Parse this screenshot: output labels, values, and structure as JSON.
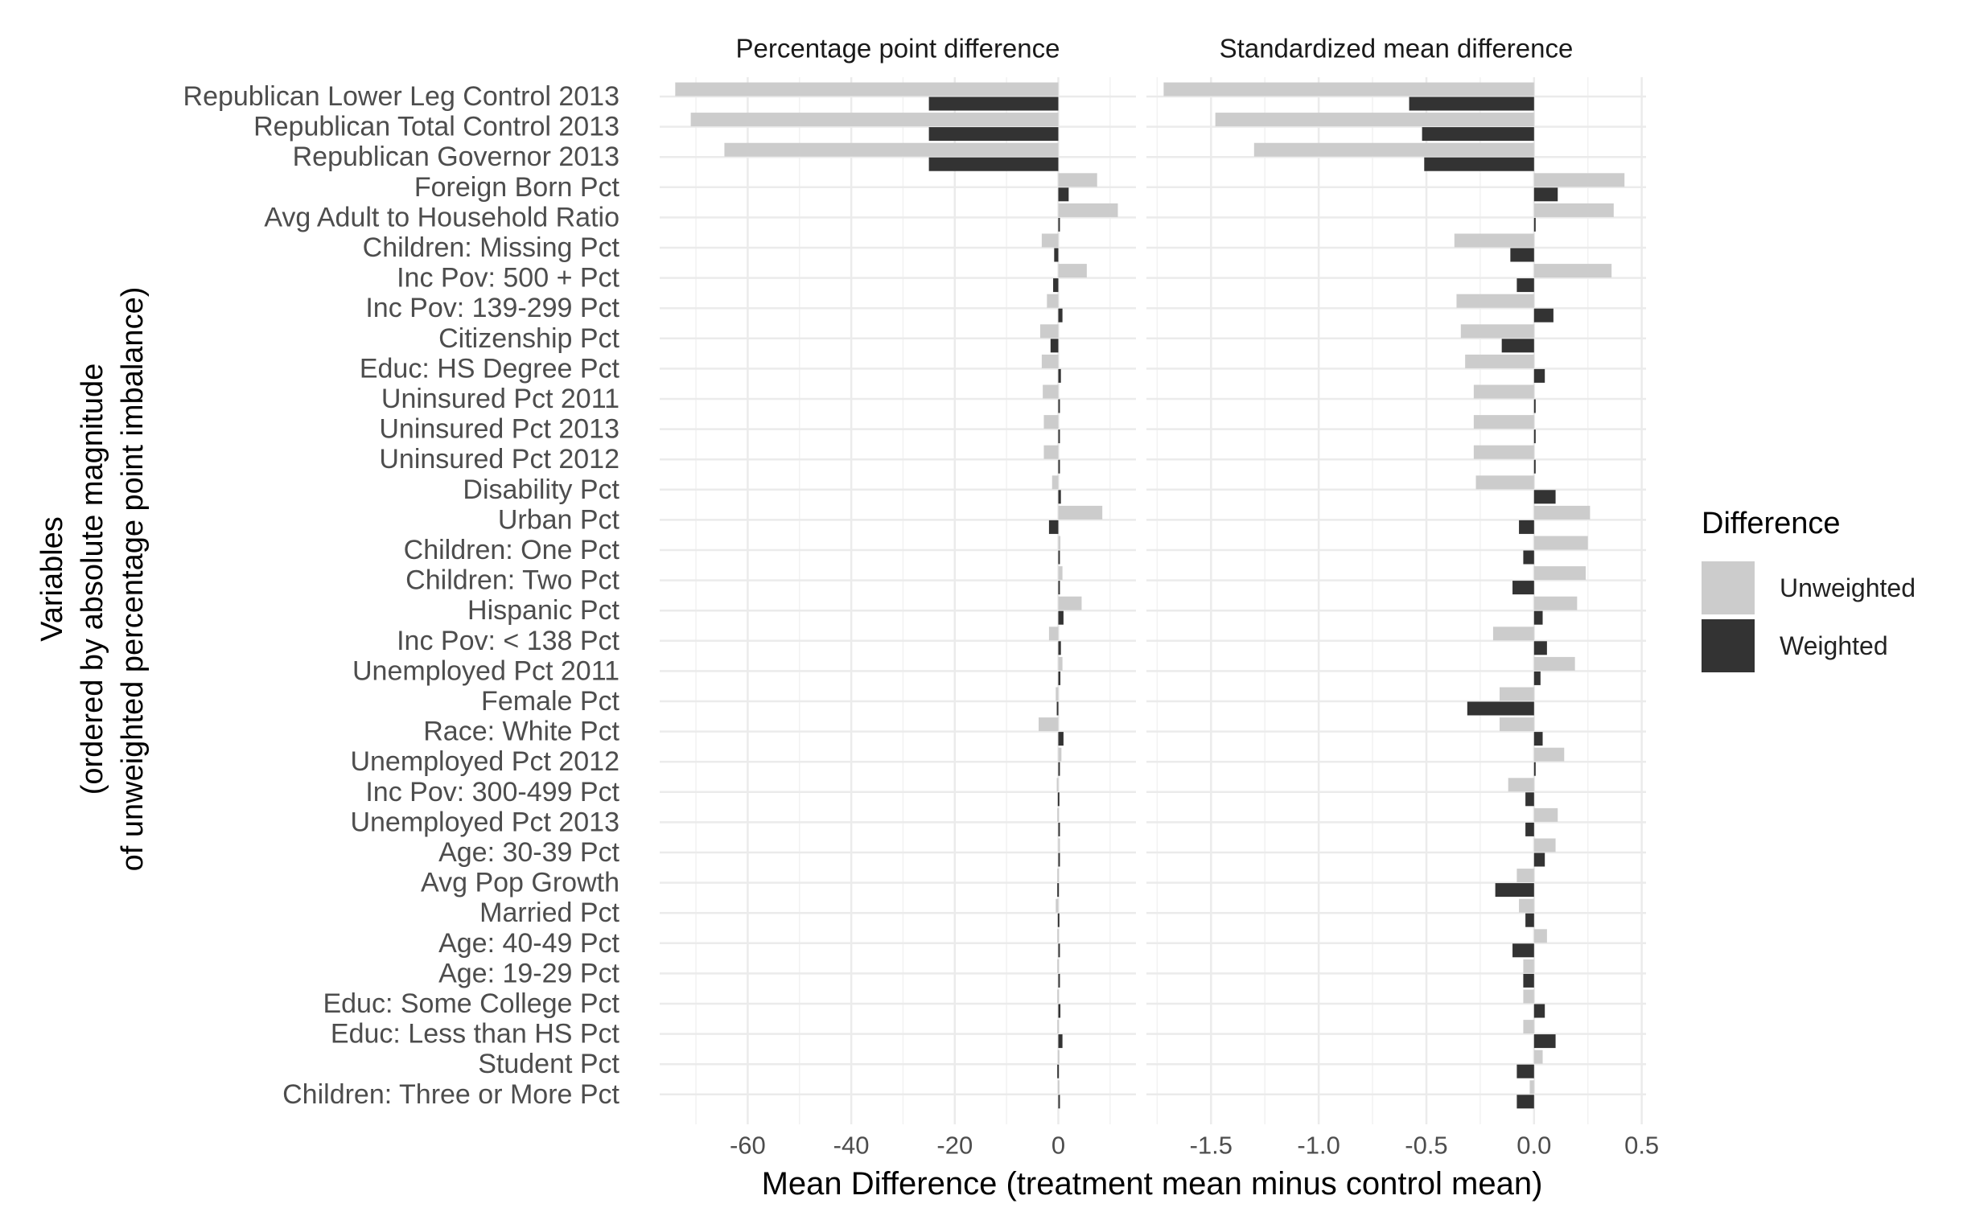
{
  "chart_data": {
    "type": "bar",
    "orientation": "horizontal",
    "ylabel_lines": [
      "Variables",
      "(ordered by absolute magnitude",
      "of unweighted percentage point imbalance)"
    ],
    "xlabel": "Mean Difference (treatment mean minus control mean)",
    "categories": [
      "Republican Lower Leg Control 2013",
      "Republican Total Control 2013",
      "Republican Governor 2013",
      "Foreign Born Pct",
      "Avg Adult to Household Ratio",
      "Children: Missing Pct",
      "Inc Pov: 500 + Pct",
      "Inc Pov: 139-299 Pct",
      "Citizenship Pct",
      "Educ: HS Degree Pct",
      "Uninsured Pct 2011",
      "Uninsured Pct 2013",
      "Uninsured Pct 2012",
      "Disability Pct",
      "Urban Pct",
      "Children: One Pct",
      "Children: Two Pct",
      "Hispanic Pct",
      "Inc Pov: < 138 Pct",
      "Unemployed Pct 2011",
      "Female Pct",
      "Race: White Pct",
      "Unemployed Pct 2012",
      "Inc Pov: 300-499 Pct",
      "Unemployed Pct 2013",
      "Age: 30-39 Pct",
      "Avg Pop Growth",
      "Married Pct",
      "Age: 40-49 Pct",
      "Age: 19-29 Pct",
      "Educ: Some College Pct",
      "Educ: Less than HS Pct",
      "Student Pct",
      "Children: Three or More Pct"
    ],
    "legend": {
      "title": "Difference",
      "position": "right",
      "items": [
        {
          "name": "Unweighted",
          "color": "#cccccc"
        },
        {
          "name": "Weighted",
          "color": "#333333"
        }
      ]
    },
    "grid": true,
    "panels": [
      {
        "title": "Percentage point difference",
        "xlim": [
          -77,
          15
        ],
        "ticks": [
          -60,
          -40,
          -20,
          0
        ],
        "tick_labels": [
          "-60",
          "-40",
          "-20",
          "0"
        ],
        "series": [
          {
            "name": "Unweighted",
            "values": [
              -74,
              -71,
              -64.5,
              7.5,
              11.5,
              -3.2,
              5.5,
              -2.2,
              -3.5,
              -3.2,
              -3.0,
              -2.8,
              -2.8,
              -1.2,
              8.5,
              0.4,
              0.8,
              4.5,
              -1.8,
              0.8,
              -0.5,
              -3.8,
              0.6,
              -0.3,
              -0.2,
              0.2,
              -0.2,
              -0.5,
              -0.2,
              -0.2,
              -0.2,
              -0.2,
              -0.1,
              -0.1
            ]
          },
          {
            "name": "Weighted",
            "values": [
              -25,
              -25,
              -25,
              2.0,
              0.0,
              -0.8,
              -1.0,
              0.8,
              -1.5,
              0.5,
              0.0,
              0.0,
              0.0,
              0.5,
              -1.8,
              0.3,
              0.3,
              1.0,
              0.5,
              0.4,
              -0.3,
              1.0,
              0.1,
              -0.1,
              0.1,
              0.3,
              -0.2,
              -0.1,
              0.1,
              0.1,
              0.4,
              0.8,
              -0.2,
              0.0
            ]
          }
        ]
      },
      {
        "title": "Standardized mean difference",
        "xlim": [
          -1.8,
          0.52
        ],
        "ticks": [
          -1.5,
          -1.0,
          -0.5,
          0.0,
          0.5
        ],
        "tick_labels": [
          "-1.5",
          "-1.0",
          "-0.5",
          "0.0",
          "0.5"
        ],
        "series": [
          {
            "name": "Unweighted",
            "values": [
              -1.72,
              -1.48,
              -1.3,
              0.42,
              0.37,
              -0.37,
              0.36,
              -0.36,
              -0.34,
              -0.32,
              -0.28,
              -0.28,
              -0.28,
              -0.27,
              0.26,
              0.25,
              0.24,
              0.2,
              -0.19,
              0.19,
              -0.16,
              -0.16,
              0.14,
              -0.12,
              0.11,
              0.1,
              -0.08,
              -0.07,
              0.06,
              -0.05,
              -0.05,
              -0.05,
              0.04,
              -0.02
            ]
          },
          {
            "name": "Weighted",
            "values": [
              -0.58,
              -0.52,
              -0.51,
              0.11,
              0.0,
              -0.11,
              -0.08,
              0.09,
              -0.15,
              0.05,
              0.0,
              0.0,
              0.0,
              0.1,
              -0.07,
              -0.05,
              -0.1,
              0.04,
              0.06,
              0.03,
              -0.31,
              0.04,
              0.0,
              -0.04,
              -0.04,
              0.05,
              -0.18,
              -0.04,
              -0.1,
              -0.05,
              0.05,
              0.1,
              -0.08,
              -0.08
            ]
          }
        ]
      }
    ]
  }
}
